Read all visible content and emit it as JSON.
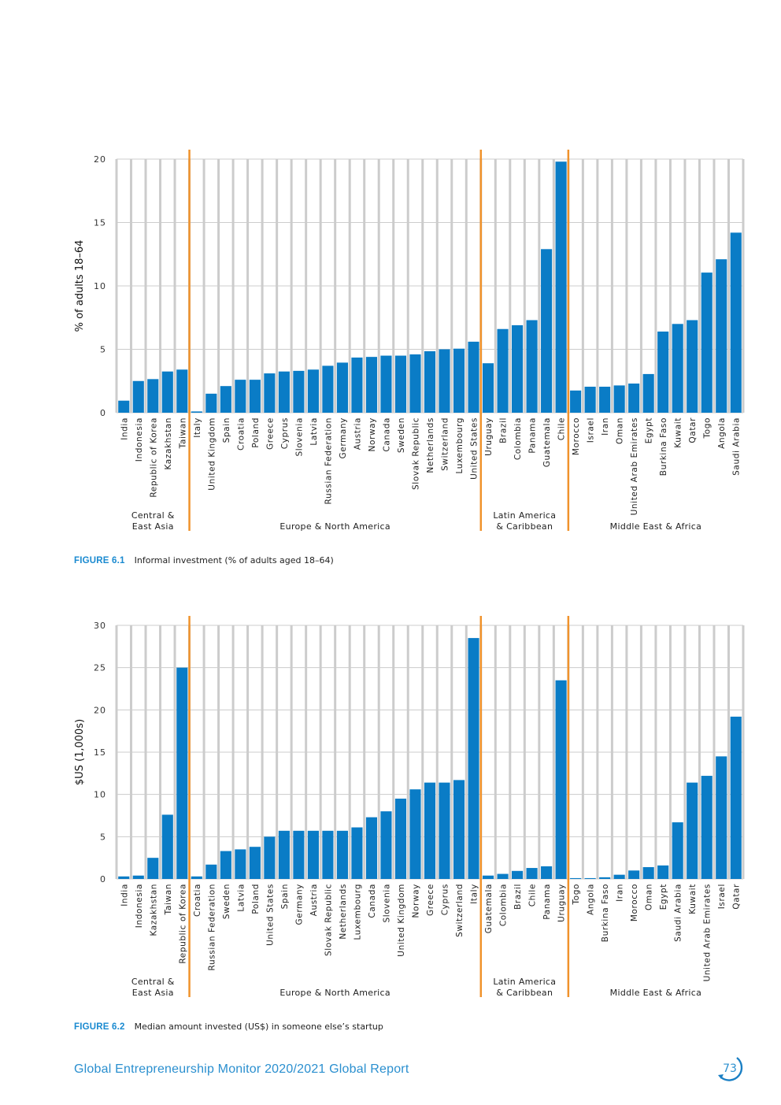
{
  "colors": {
    "bar": "#0a7cc6",
    "divider": "#f0922b",
    "grid": "#cccccc",
    "accent": "#1a8ad0"
  },
  "chart_data": [
    {
      "type": "bar",
      "title": "Informal investment (% of adults aged 18–64)",
      "figure_label": "FIGURE 6.1",
      "xlabel": "",
      "ylabel": "% of adults 18–64",
      "ylim": [
        0,
        20
      ],
      "yticks": [
        0,
        5,
        10,
        15,
        20
      ],
      "grid": true,
      "groups": [
        {
          "name": "Central & East Asia",
          "lines": [
            "Central &",
            "East Asia"
          ],
          "categories": [
            "India",
            "Indonesia",
            "Republic of Korea",
            "Kazakhstan",
            "Taiwan"
          ],
          "values": [
            0.95,
            2.5,
            2.65,
            3.25,
            3.4
          ]
        },
        {
          "name": "Europe & North America",
          "lines": [
            "Europe & North America"
          ],
          "categories": [
            "Italy",
            "United Kingdom",
            "Spain",
            "Croatia",
            "Poland",
            "Greece",
            "Cyprus",
            "Slovenia",
            "Latvia",
            "Russian Federation",
            "Germany",
            "Austria",
            "Norway",
            "Canada",
            "Sweden",
            "Slovak Republic",
            "Netherlands",
            "Switzerland",
            "Luxembourg",
            "United States"
          ],
          "values": [
            0.1,
            1.5,
            2.1,
            2.6,
            2.6,
            3.1,
            3.25,
            3.3,
            3.4,
            3.7,
            3.95,
            4.35,
            4.4,
            4.5,
            4.5,
            4.6,
            4.85,
            5.0,
            5.05,
            5.6
          ]
        },
        {
          "name": "Latin America & Caribbean",
          "lines": [
            "Latin America",
            "& Caribbean"
          ],
          "categories": [
            "Uruguay",
            "Brazil",
            "Colombia",
            "Panama",
            "Guatemala",
            "Chile"
          ],
          "values": [
            3.9,
            6.6,
            6.9,
            7.3,
            12.9,
            19.8
          ]
        },
        {
          "name": "Middle East & Africa",
          "lines": [
            "Middle East & Africa"
          ],
          "categories": [
            "Morocco",
            "Israel",
            "Iran",
            "Oman",
            "United Arab Emirates",
            "Egypt",
            "Burkina Faso",
            "Kuwait",
            "Qatar",
            "Togo",
            "Angola",
            "Saudi Arabia"
          ],
          "values": [
            1.75,
            2.05,
            2.05,
            2.15,
            2.3,
            3.05,
            6.4,
            7.0,
            7.3,
            11.05,
            12.1,
            14.2
          ]
        }
      ]
    },
    {
      "type": "bar",
      "title": "Median amount invested (US$) in someone else’s startup",
      "figure_label": "FIGURE 6.2",
      "xlabel": "",
      "ylabel": "$US (1,000s)",
      "ylim": [
        0,
        30
      ],
      "yticks": [
        0,
        5,
        10,
        15,
        20,
        25,
        30
      ],
      "grid": true,
      "groups": [
        {
          "name": "Central & East Asia",
          "lines": [
            "Central &",
            "East Asia"
          ],
          "categories": [
            "India",
            "Indonesia",
            "Kazakhstan",
            "Taiwan",
            "Republic of Korea"
          ],
          "values": [
            0.3,
            0.4,
            2.5,
            7.6,
            25.0
          ]
        },
        {
          "name": "Europe & North America",
          "lines": [
            "Europe & North America"
          ],
          "categories": [
            "Croatia",
            "Russian Federation",
            "Sweden",
            "Latvia",
            "Poland",
            "United States",
            "Spain",
            "Germany",
            "Austria",
            "Slovak Republic",
            "Netherlands",
            "Luxembourg",
            "Canada",
            "Slovenia",
            "United Kingdom",
            "Norway",
            "Greece",
            "Cyprus",
            "Switzerland",
            "Italy"
          ],
          "values": [
            0.3,
            1.7,
            3.3,
            3.5,
            3.8,
            5.0,
            5.7,
            5.7,
            5.7,
            5.7,
            5.7,
            6.1,
            7.3,
            8.0,
            9.5,
            10.6,
            11.4,
            11.4,
            11.7,
            28.5
          ]
        },
        {
          "name": "Latin America & Caribbean",
          "lines": [
            "Latin America",
            "& Caribbean"
          ],
          "categories": [
            "Guatemala",
            "Colombia",
            "Brazil",
            "Chile",
            "Panama",
            "Uruguay"
          ],
          "values": [
            0.4,
            0.6,
            0.95,
            1.3,
            1.5,
            23.5
          ]
        },
        {
          "name": "Middle East & Africa",
          "lines": [
            "Middle East & Africa"
          ],
          "categories": [
            "Togo",
            "Angola",
            "Burkina Faso",
            "Iran",
            "Morocco",
            "Oman",
            "Egypt",
            "Saudi Arabia",
            "Kuwait",
            "United Arab Emirates",
            "Israel",
            "Qatar"
          ],
          "values": [
            0.1,
            0.1,
            0.2,
            0.5,
            1.0,
            1.4,
            1.6,
            6.7,
            11.4,
            12.2,
            14.5,
            19.2
          ]
        }
      ]
    }
  ],
  "captions": [
    {
      "label": "FIGURE 6.1",
      "text": "Informal investment (% of adults aged 18–64)"
    },
    {
      "label": "FIGURE 6.2",
      "text": "Median amount invested (US$) in someone else’s startup"
    }
  ],
  "footer": {
    "title": "Global Entrepreneurship Monitor 2020/2021 Global Report",
    "page_number": "73"
  }
}
